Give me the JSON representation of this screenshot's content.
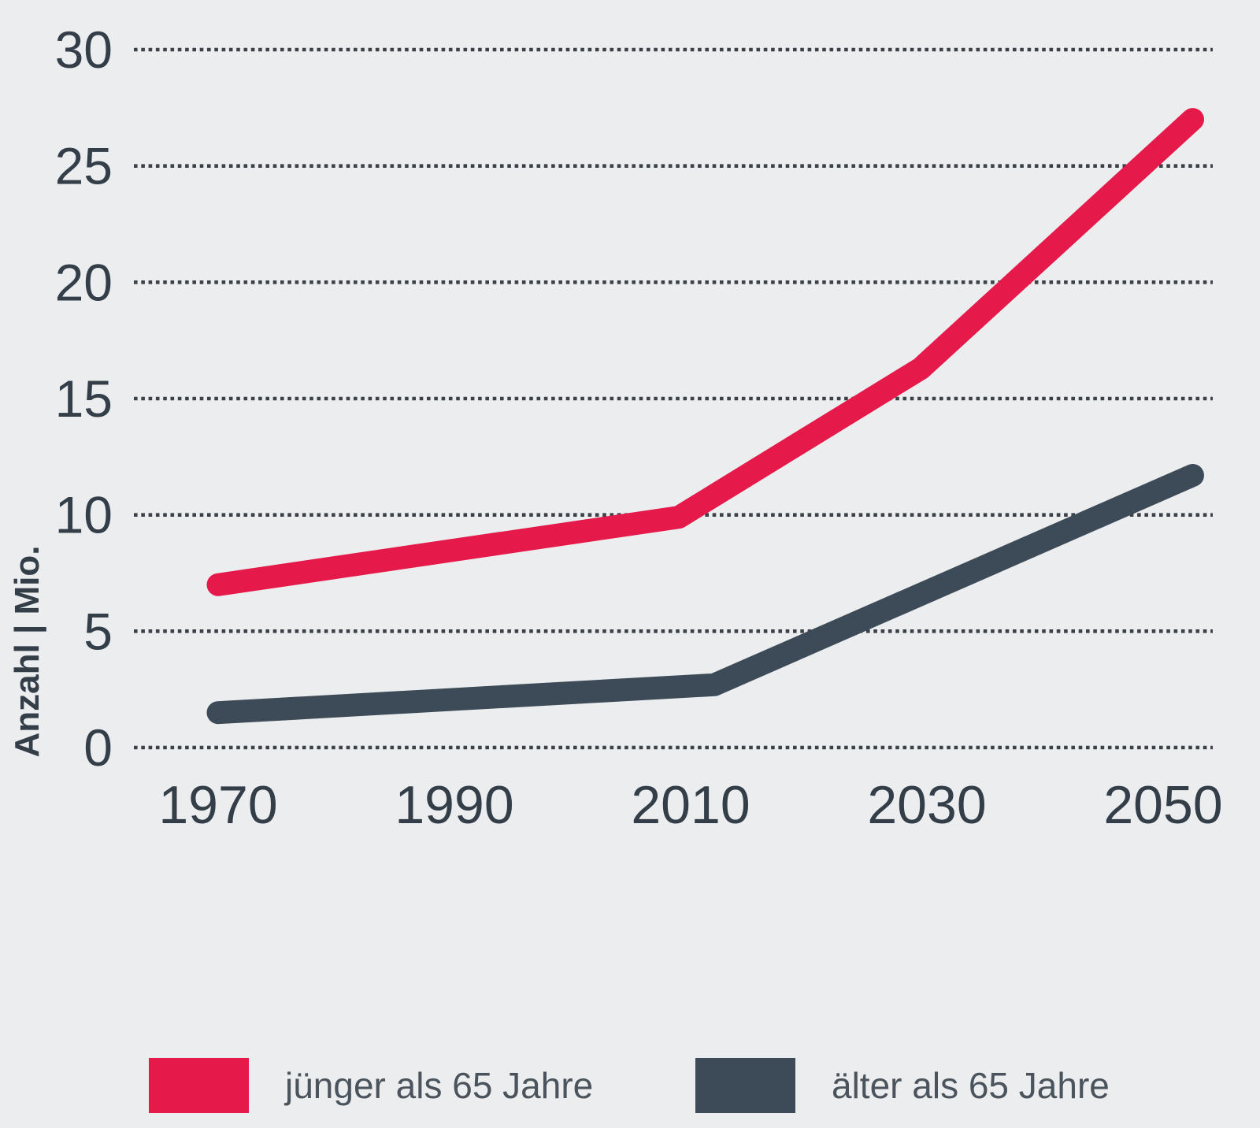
{
  "page": {
    "background": "#ebedee"
  },
  "colors": {
    "grid_dots": "#3b4147",
    "axis_text": "#333e48",
    "legend_text": "#4b545c",
    "series_red": "#e51a4b",
    "series_slate": "#3d4a57"
  },
  "chart_data": {
    "type": "line",
    "title": "",
    "xlabel": "",
    "ylabel": "Anzahl | Mio.",
    "x_tick_labels": [
      "1970",
      "1990",
      "2010",
      "2030",
      "2050"
    ],
    "x_tick_years": [
      1970,
      1990,
      2010,
      2030,
      2050
    ],
    "y_ticks": [
      0,
      5,
      10,
      15,
      20,
      25,
      30
    ],
    "ylim": [
      0,
      30
    ],
    "xlim": [
      1970,
      2053
    ],
    "grid": "horizontal dotted lines at every y tick",
    "legend_position": "bottom",
    "series": [
      {
        "name": "jünger als 65 Jahre",
        "color": "#e51a4b",
        "points": [
          [
            1970,
            7
          ],
          [
            2009,
            9.9
          ],
          [
            2029.5,
            16.3
          ],
          [
            2052.5,
            27
          ]
        ],
        "values_at_ticks": [
          7,
          8.5,
          10,
          16,
          26
        ]
      },
      {
        "name": "älter als 65 Jahre",
        "color": "#3d4a57",
        "points": [
          [
            1970,
            1.5
          ],
          [
            2012,
            2.7
          ],
          [
            2052.5,
            11.7
          ]
        ],
        "values_at_ticks": [
          1.5,
          2.1,
          2.7,
          6.7,
          11.5
        ]
      }
    ]
  }
}
